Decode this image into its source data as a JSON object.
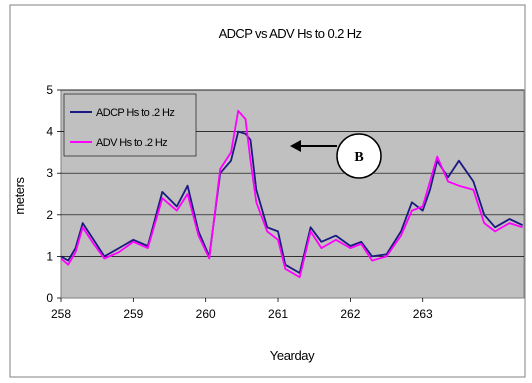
{
  "chart_data": {
    "type": "line",
    "title": "ADCP vs ADV Hs to 0.2 Hz",
    "xlabel": "Yearday",
    "ylabel": "meters",
    "xlim": [
      258,
      264.4
    ],
    "ylim": [
      0,
      5
    ],
    "xticks": [
      258,
      259,
      260,
      261,
      262,
      263
    ],
    "xtick_labels": [
      "258",
      "259",
      "260",
      "261",
      "262",
      "263"
    ],
    "yticks": [
      0,
      1,
      2,
      3,
      4,
      5
    ],
    "ytick_labels": [
      "0",
      "1",
      "2",
      "3",
      "4",
      "5"
    ],
    "grid": "horizontal",
    "legend_position": "top-left",
    "plot_background": "#c0c0c0",
    "series": [
      {
        "name": "ADCP Hs to .2 Hz",
        "color": "#1a1a80",
        "x": [
          258.0,
          258.1,
          258.2,
          258.3,
          258.45,
          258.6,
          258.8,
          259.0,
          259.2,
          259.4,
          259.6,
          259.75,
          259.9,
          260.05,
          260.2,
          260.35,
          260.45,
          260.55,
          260.62,
          260.7,
          260.85,
          261.0,
          261.1,
          261.2,
          261.3,
          261.45,
          261.6,
          261.8,
          262.0,
          262.15,
          262.3,
          262.5,
          262.7,
          262.85,
          263.0,
          263.1,
          263.2,
          263.35,
          263.5,
          263.7,
          263.85,
          264.0,
          264.2,
          264.38
        ],
        "y": [
          1.0,
          0.9,
          1.2,
          1.8,
          1.4,
          1.0,
          1.2,
          1.4,
          1.25,
          2.55,
          2.2,
          2.7,
          1.6,
          1.0,
          3.0,
          3.3,
          4.0,
          3.95,
          3.8,
          2.6,
          1.7,
          1.6,
          0.8,
          0.7,
          0.6,
          1.7,
          1.35,
          1.5,
          1.25,
          1.35,
          1.0,
          1.05,
          1.6,
          2.3,
          2.1,
          2.6,
          3.3,
          2.9,
          3.3,
          2.8,
          2.0,
          1.7,
          1.9,
          1.75
        ]
      },
      {
        "name": "ADV Hs to .2 Hz",
        "color": "#ff00ff",
        "x": [
          258.0,
          258.1,
          258.2,
          258.3,
          258.45,
          258.6,
          258.8,
          259.0,
          259.2,
          259.4,
          259.6,
          259.75,
          259.9,
          260.05,
          260.2,
          260.35,
          260.45,
          260.55,
          260.62,
          260.7,
          260.85,
          261.0,
          261.1,
          261.2,
          261.3,
          261.45,
          261.6,
          261.8,
          262.0,
          262.15,
          262.3,
          262.5,
          262.7,
          262.85,
          263.0,
          263.1,
          263.2,
          263.35,
          263.5,
          263.7,
          263.85,
          264.0,
          264.2,
          264.38
        ],
        "y": [
          0.95,
          0.8,
          1.1,
          1.7,
          1.3,
          0.95,
          1.1,
          1.35,
          1.2,
          2.4,
          2.1,
          2.5,
          1.5,
          0.95,
          3.1,
          3.5,
          4.5,
          4.3,
          3.3,
          2.3,
          1.6,
          1.4,
          0.7,
          0.6,
          0.5,
          1.6,
          1.2,
          1.4,
          1.2,
          1.3,
          0.9,
          1.0,
          1.5,
          2.1,
          2.2,
          2.8,
          3.4,
          2.8,
          2.7,
          2.6,
          1.8,
          1.6,
          1.8,
          1.7
        ]
      }
    ],
    "annotation": {
      "label": "B",
      "points_to": {
        "x": 260.72,
        "y": 3.9
      }
    }
  }
}
